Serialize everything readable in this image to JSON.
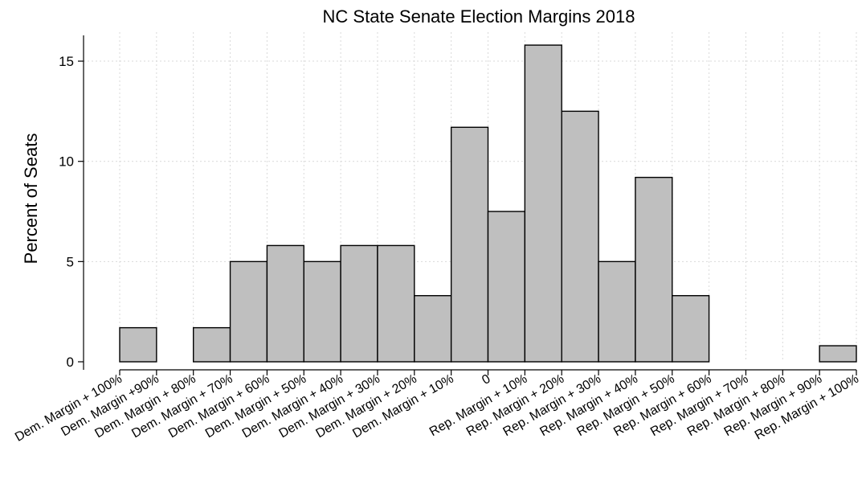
{
  "chart_data": {
    "type": "bar",
    "title": "NC State Senate Election Margins 2018",
    "xlabel": "",
    "ylabel": "Percent of Seats",
    "ylim": [
      0,
      16
    ],
    "yticks": [
      0,
      5,
      10,
      15
    ],
    "grid": true,
    "bar_color": "#bfbfbf",
    "xtick_labels": [
      "Dem. Margin + 100%",
      "Dem. Margin +90%",
      "Dem. Margin + 80%",
      "Dem. Margin + 70%",
      "Dem. Margin + 60%",
      "Dem. Margin + 50%",
      "Dem. Margin + 40%",
      "Dem. Margin + 30%",
      "Dem. Margin + 20%",
      "Dem. Margin + 10%",
      "0",
      "Rep. Margin + 10%",
      "Rep. Margin + 20%",
      "Rep. Margin + 30%",
      "Rep. Margin + 40%",
      "Rep. Margin + 50%",
      "Rep. Margin + 60%",
      "Rep. Margin + 70%",
      "Rep. Margin + 80%",
      "Rep. Margin + 90%",
      "Rep. Margin + 100%"
    ],
    "values": [
      1.7,
      0,
      1.7,
      5.0,
      5.8,
      5.0,
      5.8,
      5.8,
      3.3,
      11.7,
      7.5,
      15.8,
      12.5,
      5.0,
      9.2,
      3.3,
      0,
      0,
      0,
      0.8
    ]
  }
}
